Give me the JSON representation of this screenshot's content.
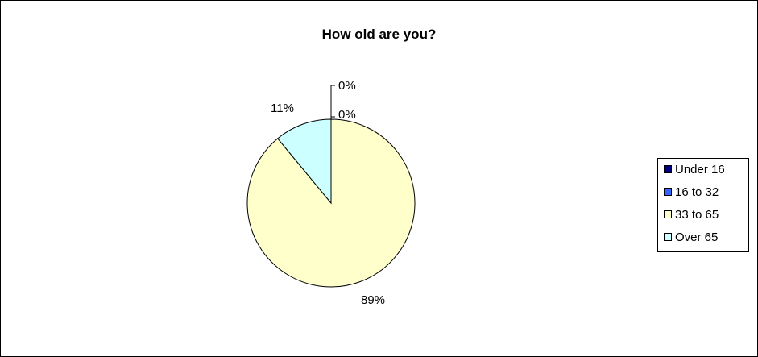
{
  "chart_data": {
    "type": "pie",
    "title": "How old are you?",
    "categories": [
      "Under 16",
      "16 to 32",
      "33 to 65",
      "Over 65"
    ],
    "values": [
      0,
      0,
      89,
      11
    ],
    "labels": [
      "0%",
      "0%",
      "89%",
      "11%"
    ],
    "colors": [
      "#000080",
      "#3366ff",
      "#ffffcc",
      "#ccffff"
    ],
    "legend_position": "right"
  }
}
